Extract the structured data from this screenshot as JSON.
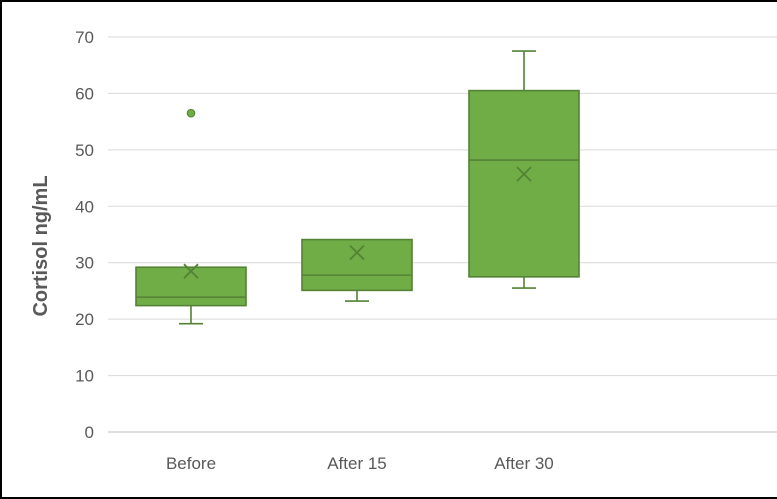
{
  "chart_data": {
    "type": "box",
    "ylabel": "Cortisol  ng/mL",
    "xlabel": "",
    "ylim": [
      0,
      70
    ],
    "yticks": [
      0,
      10,
      20,
      30,
      40,
      50,
      60,
      70
    ],
    "grid": true,
    "categories": [
      "Before",
      "After 15",
      "After 30"
    ],
    "boxes": [
      {
        "category": "Before",
        "min": 19.2,
        "q1": 22.4,
        "median": 23.9,
        "q3": 29.2,
        "max": 29.2,
        "mean": 28.5,
        "outliers": [
          56.5
        ]
      },
      {
        "category": "After 15",
        "min": 23.2,
        "q1": 25.1,
        "median": 27.8,
        "q3": 34.1,
        "max": 34.1,
        "mean": 31.8,
        "outliers": []
      },
      {
        "category": "After 30",
        "min": 25.5,
        "q1": 27.5,
        "median": 48.2,
        "q3": 60.5,
        "max": 67.5,
        "mean": 45.7,
        "outliers": []
      }
    ],
    "colors": {
      "box_fill": "#70AD47",
      "box_stroke": "#548235",
      "grid": "#D9D9D9",
      "axis": "#BFBFBF"
    }
  }
}
